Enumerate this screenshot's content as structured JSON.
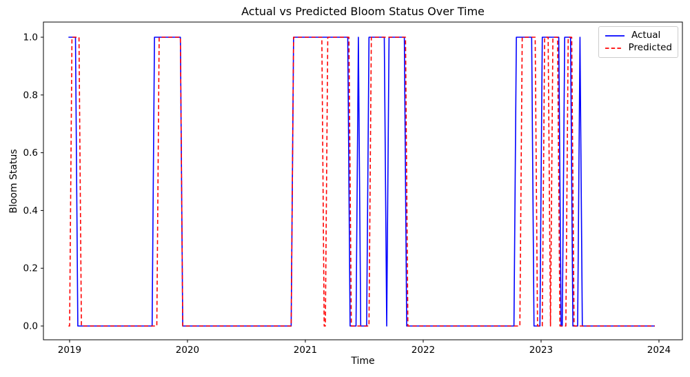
{
  "figure": {
    "title": "Actual vs Predicted Bloom Status Over Time"
  },
  "chart_data": {
    "type": "line",
    "title": "Actual vs Predicted Bloom Status Over Time",
    "xlabel": "Time",
    "ylabel": "Bloom Status",
    "xlim": [
      2018.778,
      2024.199
    ],
    "ylim": [
      -0.0477,
      1.0525
    ],
    "xticks": [
      2019,
      2020,
      2021,
      2022,
      2023,
      2024
    ],
    "xtick_labels": [
      "2019",
      "2020",
      "2021",
      "2022",
      "2023",
      "2024"
    ],
    "yticks": [
      0.0,
      0.2,
      0.4,
      0.6,
      0.8,
      1.0
    ],
    "ytick_labels": [
      "0.0",
      "0.2",
      "0.4",
      "0.6",
      "0.8",
      "1.0"
    ],
    "grid": false,
    "axis_color": "#000000",
    "legend": {
      "position": "upper right",
      "border_color": "#cccccc",
      "background": "#ffffff",
      "entries": [
        "Actual",
        "Predicted"
      ]
    },
    "series": [
      {
        "name": "Actual",
        "color": "#0000ff",
        "line_style": "solid",
        "points": [
          [
            2018.99,
            1
          ],
          [
            2019.05,
            1
          ],
          [
            2019.07,
            0
          ],
          [
            2019.7,
            0
          ],
          [
            2019.72,
            1
          ],
          [
            2019.94,
            1
          ],
          [
            2019.96,
            0
          ],
          [
            2020.88,
            0
          ],
          [
            2020.9,
            1
          ],
          [
            2021.36,
            1
          ],
          [
            2021.38,
            0
          ],
          [
            2021.43,
            0
          ],
          [
            2021.45,
            1
          ],
          [
            2021.47,
            0
          ],
          [
            2021.52,
            0
          ],
          [
            2021.54,
            1
          ],
          [
            2021.67,
            1
          ],
          [
            2021.69,
            0
          ],
          [
            2021.71,
            1
          ],
          [
            2021.84,
            1
          ],
          [
            2021.86,
            0
          ],
          [
            2022.77,
            0
          ],
          [
            2022.79,
            1
          ],
          [
            2022.92,
            1
          ],
          [
            2022.94,
            0
          ],
          [
            2022.99,
            0
          ],
          [
            2023.01,
            1
          ],
          [
            2023.15,
            1
          ],
          [
            2023.17,
            0
          ],
          [
            2023.18,
            0
          ],
          [
            2023.2,
            1
          ],
          [
            2023.25,
            1
          ],
          [
            2023.27,
            0
          ],
          [
            2023.31,
            0
          ],
          [
            2023.33,
            1
          ],
          [
            2023.35,
            0
          ],
          [
            2023.965,
            0
          ]
        ]
      },
      {
        "name": "Predicted",
        "color": "#ff0000",
        "line_style": "dashed",
        "points": [
          [
            2018.99,
            0
          ],
          [
            2019.0,
            0
          ],
          [
            2019.02,
            1
          ],
          [
            2019.08,
            1
          ],
          [
            2019.1,
            0
          ],
          [
            2019.74,
            0
          ],
          [
            2019.76,
            1
          ],
          [
            2019.94,
            1
          ],
          [
            2019.96,
            0
          ],
          [
            2020.88,
            0
          ],
          [
            2020.9,
            1
          ],
          [
            2021.14,
            1
          ],
          [
            2021.16,
            0
          ],
          [
            2021.17,
            0
          ],
          [
            2021.19,
            1
          ],
          [
            2021.37,
            1
          ],
          [
            2021.39,
            0
          ],
          [
            2021.54,
            0
          ],
          [
            2021.56,
            1
          ],
          [
            2021.85,
            1
          ],
          [
            2021.87,
            0
          ],
          [
            2022.82,
            0
          ],
          [
            2022.84,
            1
          ],
          [
            2022.95,
            1
          ],
          [
            2022.97,
            0
          ],
          [
            2023.01,
            0
          ],
          [
            2023.03,
            1
          ],
          [
            2023.06,
            1
          ],
          [
            2023.08,
            0
          ],
          [
            2023.1,
            1
          ],
          [
            2023.14,
            1
          ],
          [
            2023.16,
            0
          ],
          [
            2023.21,
            0
          ],
          [
            2023.23,
            1
          ],
          [
            2023.26,
            1
          ],
          [
            2023.28,
            0
          ],
          [
            2023.965,
            0
          ]
        ]
      }
    ]
  }
}
